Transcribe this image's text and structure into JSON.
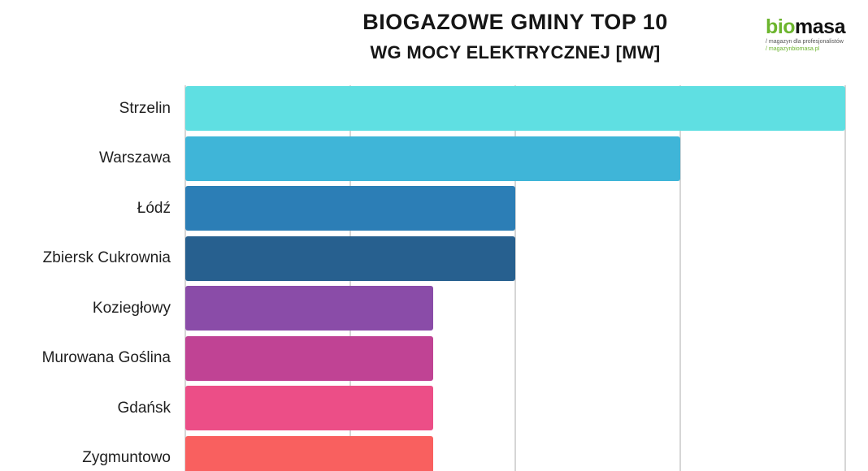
{
  "header": {
    "title": "BIOGAZOWE GMINY TOP 10",
    "subtitle": "WG MOCY ELEKTRYCZNEJ [MW]"
  },
  "logo": {
    "bio": "bio",
    "masa": "masa",
    "tagline_1": "/ magazyn dla profesjonalistów",
    "tagline_2": "/ magazynbiomasa.pl",
    "green": "#6CB52E"
  },
  "chart_data": {
    "type": "bar",
    "orientation": "horizontal",
    "title": "BIOGAZOWE GMINY TOP 10",
    "subtitle": "WG MOCY ELEKTRYCZNEJ [MW]",
    "unit": "MW",
    "categories": [
      "Strzelin",
      "Warszawa",
      "Łódź",
      "Zbiersk Cukrownia",
      "Koziegłowy",
      "Murowana Goślina",
      "Gdańsk",
      "Zygmuntowo"
    ],
    "values": [
      8.0,
      6.0,
      4.0,
      4.0,
      3.0,
      3.0,
      3.0,
      3.0
    ],
    "colors": [
      "#5FDFE2",
      "#3FB5D8",
      "#2C7EB6",
      "#27608F",
      "#8A4CA8",
      "#C04394",
      "#EC4E87",
      "#F9605F"
    ],
    "xlim": [
      0,
      8
    ],
    "grid": true,
    "gridline_interval": 2,
    "legend": false,
    "axis_tick_labels_visible": false
  }
}
